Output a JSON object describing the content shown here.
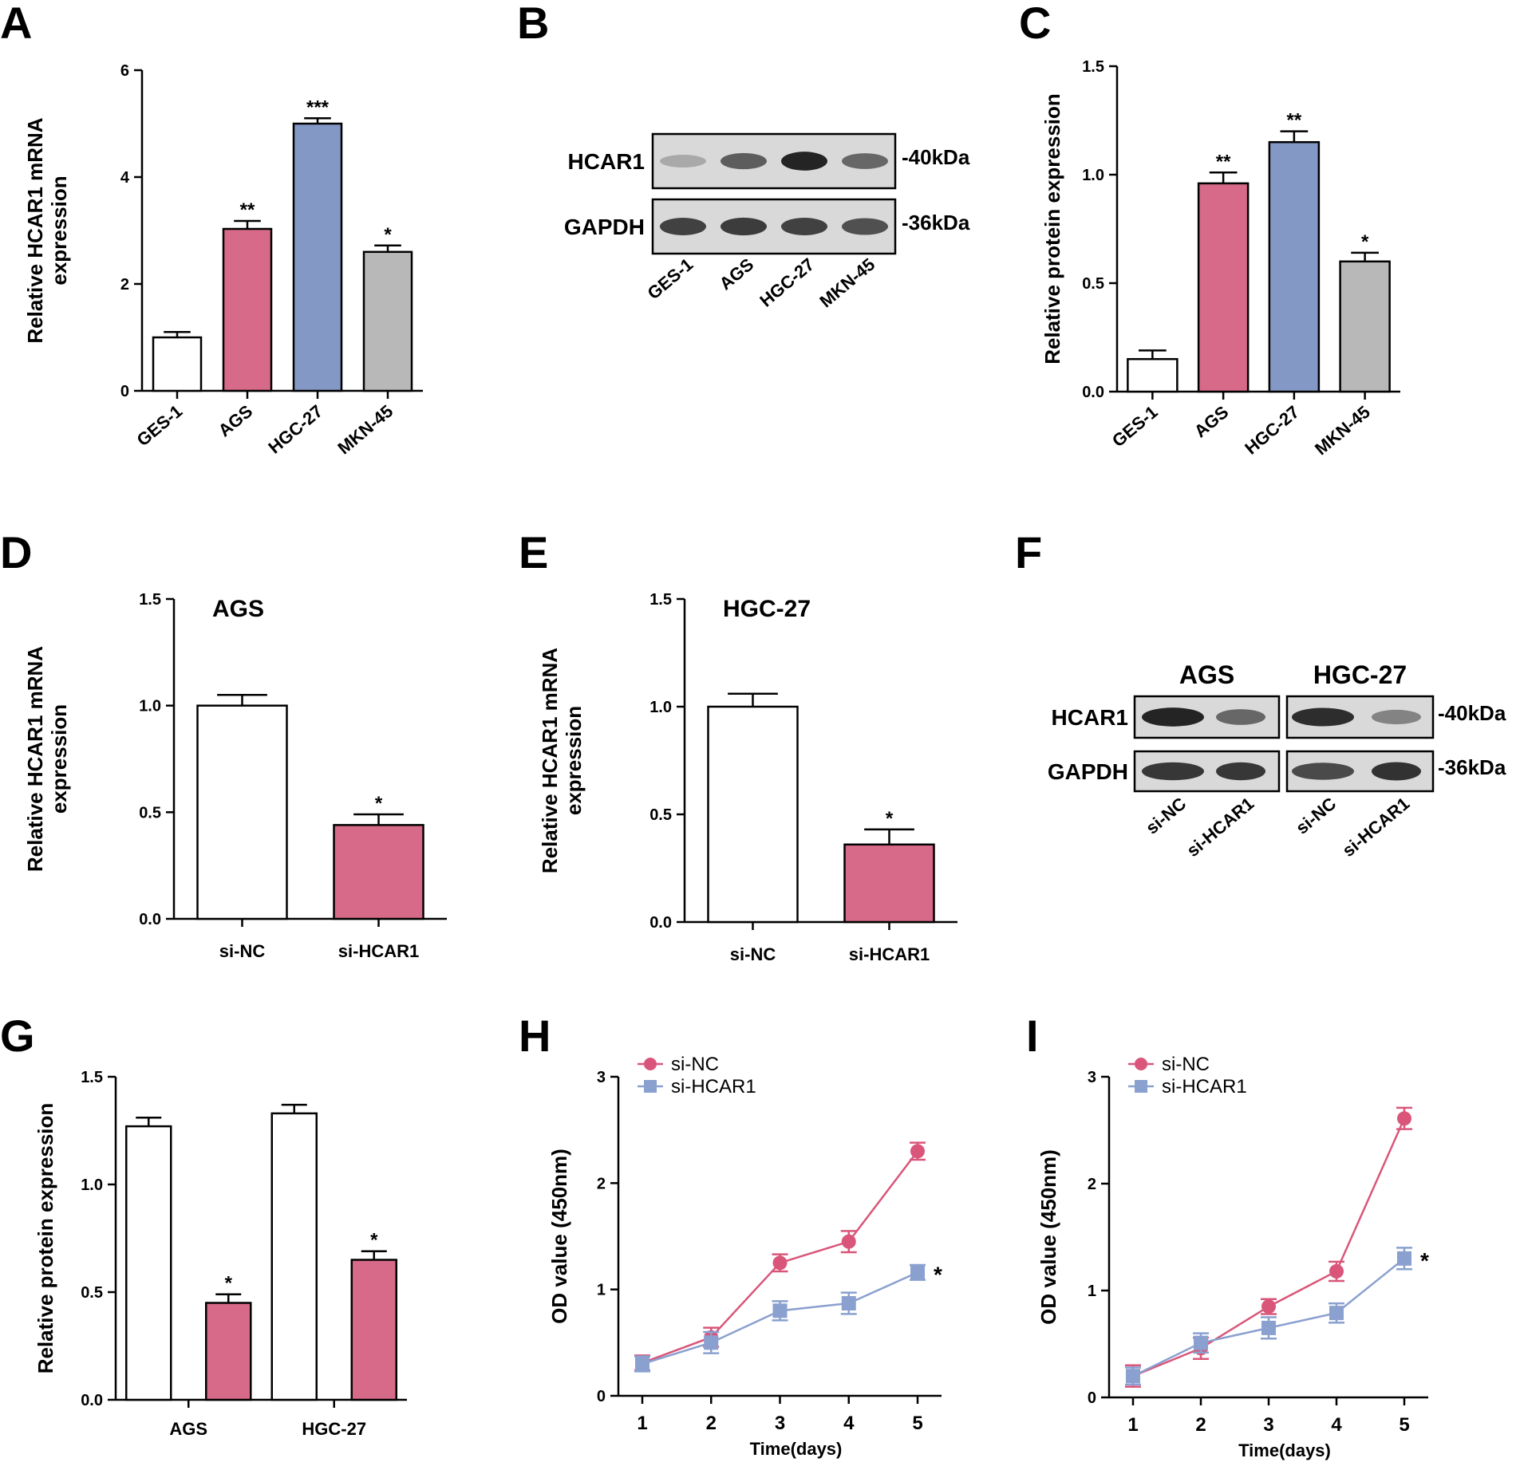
{
  "colors": {
    "white": "#ffffff",
    "pink": "#d66a88",
    "blue": "#8498c6",
    "gray": "#b8b8b8",
    "line_nc": "#d9567a",
    "line_si": "#8aa0cf",
    "blot_bg": "#d9d9d9",
    "band": "#1a1a1a"
  },
  "chart_data": [
    {
      "panel": "A",
      "type": "bar",
      "categories": [
        "GES-1",
        "AGS",
        "HGC-27",
        "MKN-45"
      ],
      "values": [
        1.0,
        3.03,
        5.0,
        2.6
      ],
      "errors": [
        0.1,
        0.15,
        0.1,
        0.12
      ],
      "significance": [
        "",
        "**",
        "***",
        "*"
      ],
      "bar_colors": [
        "white",
        "pink",
        "blue",
        "gray"
      ],
      "ylabel": [
        "Relative HCAR1 mRNA",
        "expression"
      ],
      "ylim": [
        0,
        6
      ],
      "yticks": [
        "0",
        "2",
        "4",
        "6"
      ],
      "ytick_values": [
        0,
        2,
        4,
        6
      ]
    },
    {
      "panel": "C",
      "type": "bar",
      "categories": [
        "GES-1",
        "AGS",
        "HGC-27",
        "MKN-45"
      ],
      "values": [
        0.15,
        0.96,
        1.15,
        0.6
      ],
      "errors": [
        0.04,
        0.05,
        0.05,
        0.04
      ],
      "significance": [
        "",
        "**",
        "**",
        "*"
      ],
      "bar_colors": [
        "white",
        "pink",
        "blue",
        "gray"
      ],
      "ylabel": [
        "Relative protein expression"
      ],
      "ylim": [
        0,
        1.5
      ],
      "yticks": [
        "0.0",
        "0.5",
        "1.0",
        "1.5"
      ],
      "ytick_values": [
        0,
        0.5,
        1.0,
        1.5
      ]
    },
    {
      "panel": "D",
      "type": "bar",
      "inset_label": "AGS",
      "categories": [
        "si-NC",
        "si-HCAR1"
      ],
      "values": [
        1.0,
        0.44
      ],
      "errors": [
        0.05,
        0.05
      ],
      "significance": [
        "",
        "*"
      ],
      "bar_colors": [
        "white",
        "pink"
      ],
      "ylabel": [
        "Relative HCAR1 mRNA",
        "expression"
      ],
      "ylim": [
        0,
        1.5
      ],
      "yticks": [
        "0.0",
        "0.5",
        "1.0",
        "1.5"
      ],
      "ytick_values": [
        0,
        0.5,
        1.0,
        1.5
      ]
    },
    {
      "panel": "E",
      "type": "bar",
      "inset_label": "HGC-27",
      "categories": [
        "si-NC",
        "si-HCAR1"
      ],
      "values": [
        1.0,
        0.36
      ],
      "errors": [
        0.06,
        0.07
      ],
      "significance": [
        "",
        "*"
      ],
      "bar_colors": [
        "white",
        "pink"
      ],
      "ylabel": [
        "Relative HCAR1 mRNA",
        "expression"
      ],
      "ylim": [
        0,
        1.5
      ],
      "yticks": [
        "0.0",
        "0.5",
        "1.0",
        "1.5"
      ],
      "ytick_values": [
        0,
        0.5,
        1.0,
        1.5
      ]
    },
    {
      "panel": "G",
      "type": "grouped-bar",
      "categories": [
        "AGS",
        "HGC-27"
      ],
      "series": [
        {
          "name": "si-NC",
          "values": [
            1.27,
            1.33
          ],
          "errors": [
            0.04,
            0.04
          ],
          "color": "white",
          "significance": [
            "",
            ""
          ]
        },
        {
          "name": "si-HCAR1",
          "values": [
            0.45,
            0.65
          ],
          "errors": [
            0.04,
            0.04
          ],
          "color": "pink",
          "significance": [
            "*",
            "*"
          ]
        }
      ],
      "ylabel": [
        "Relative protein expression"
      ],
      "ylim": [
        0,
        1.5
      ],
      "yticks": [
        "0.0",
        "0.5",
        "1.0",
        "1.5"
      ],
      "ytick_values": [
        0,
        0.5,
        1.0,
        1.5
      ]
    },
    {
      "panel": "H",
      "type": "line",
      "x": [
        1,
        2,
        3,
        4,
        5
      ],
      "series": [
        {
          "name": "si-NC",
          "values": [
            0.31,
            0.55,
            1.25,
            1.45,
            2.3
          ],
          "errors": [
            0.07,
            0.09,
            0.08,
            0.1,
            0.08
          ],
          "color": "line_nc",
          "marker": "circle"
        },
        {
          "name": "si-HCAR1",
          "values": [
            0.3,
            0.5,
            0.8,
            0.87,
            1.16
          ],
          "errors": [
            0.07,
            0.1,
            0.09,
            0.1,
            0.07
          ],
          "color": "line_si",
          "marker": "square"
        }
      ],
      "end_significance": "*",
      "xlabel": "Time(days)",
      "ylabel": [
        "OD value (450nm)"
      ],
      "ylim": [
        0,
        3
      ],
      "yticks": [
        "0",
        "1",
        "2",
        "3"
      ],
      "ytick_values": [
        0,
        1,
        2,
        3
      ],
      "xticks": [
        "1",
        "2",
        "3",
        "4",
        "5"
      ]
    },
    {
      "panel": "I",
      "type": "line",
      "x": [
        1,
        2,
        3,
        4,
        5
      ],
      "series": [
        {
          "name": "si-NC",
          "values": [
            0.2,
            0.46,
            0.85,
            1.18,
            2.61
          ],
          "errors": [
            0.1,
            0.1,
            0.07,
            0.09,
            0.1
          ],
          "color": "line_nc",
          "marker": "circle"
        },
        {
          "name": "si-HCAR1",
          "values": [
            0.2,
            0.51,
            0.65,
            0.79,
            1.3
          ],
          "errors": [
            0.08,
            0.09,
            0.1,
            0.09,
            0.1
          ],
          "color": "line_si",
          "marker": "square"
        }
      ],
      "end_significance": "*",
      "xlabel": "Time(days)",
      "ylabel": [
        "OD value (450nm)"
      ],
      "ylim": [
        0,
        3
      ],
      "yticks": [
        "0",
        "1",
        "2",
        "3"
      ],
      "ytick_values": [
        0,
        1,
        2,
        3
      ],
      "xticks": [
        "1",
        "2",
        "3",
        "4",
        "5"
      ]
    }
  ],
  "blots": {
    "B": {
      "panel": "B",
      "rows": [
        {
          "label": "HCAR1",
          "kda": "-40kDa",
          "intensity": [
            0.25,
            0.65,
            0.95,
            0.6
          ]
        },
        {
          "label": "GAPDH",
          "kda": "-36kDa",
          "intensity": [
            0.8,
            0.82,
            0.8,
            0.72
          ]
        }
      ],
      "lanes": [
        "GES-1",
        "AGS",
        "HGC-27",
        "MKN-45"
      ]
    },
    "F": {
      "panel": "F",
      "groups": [
        "AGS",
        "HGC-27"
      ],
      "rows": [
        {
          "label": "HCAR1",
          "kda": "-40kDa",
          "intensity": [
            0.95,
            0.6,
            0.9,
            0.45
          ]
        },
        {
          "label": "GAPDH",
          "kda": "-36kDa",
          "intensity": [
            0.85,
            0.85,
            0.75,
            0.88
          ]
        }
      ],
      "lanes": [
        "si-NC",
        "si-HCAR1",
        "si-NC",
        "si-HCAR1"
      ]
    }
  }
}
